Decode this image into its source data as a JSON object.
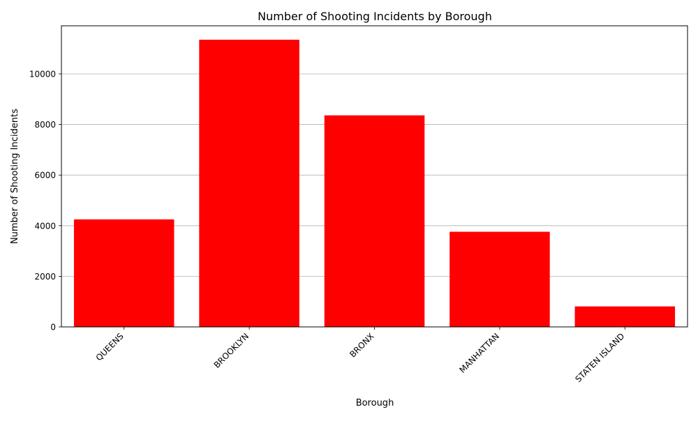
{
  "chart_data": {
    "type": "bar",
    "title": "Number of Shooting Incidents by Borough",
    "xlabel": "Borough",
    "ylabel": "Number of Shooting Incidents",
    "categories": [
      "QUEENS",
      "BROOKLYN",
      "BRONX",
      "MANHATTAN",
      "STATEN ISLAND"
    ],
    "values": [
      4250,
      11350,
      8360,
      3760,
      810
    ],
    "yticks": [
      0,
      2000,
      4000,
      6000,
      8000,
      10000
    ],
    "ylim": [
      0,
      11900
    ],
    "grid": "y-major",
    "bar_color": "#ff0000",
    "grid_color": "#b0b0b0"
  }
}
